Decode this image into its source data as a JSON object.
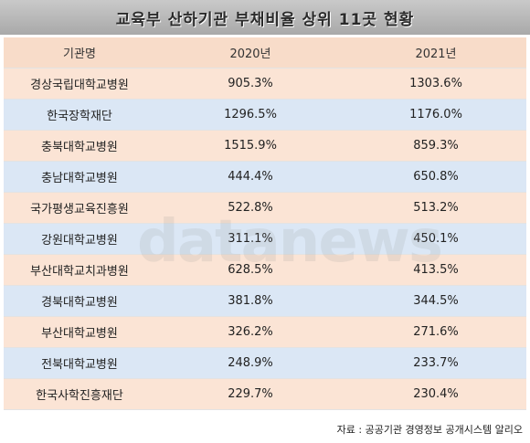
{
  "title": "교육부 산하기관 부채비율 상위 11곳 현황",
  "table": {
    "headers": [
      "기관명",
      "2020년",
      "2021년"
    ],
    "rows": [
      [
        "경상국립대학교병원",
        "905.3%",
        "1303.6%"
      ],
      [
        "한국장학재단",
        "1296.5%",
        "1176.0%"
      ],
      [
        "충북대학교병원",
        "1515.9%",
        "859.3%"
      ],
      [
        "충남대학교병원",
        "444.4%",
        "650.8%"
      ],
      [
        "국가평생교육진흥원",
        "522.8%",
        "513.2%"
      ],
      [
        "강원대학교병원",
        "311.1%",
        "450.1%"
      ],
      [
        "부산대학교치과병원",
        "628.5%",
        "413.5%"
      ],
      [
        "경북대학교병원",
        "381.8%",
        "344.5%"
      ],
      [
        "부산대학교병원",
        "326.2%",
        "271.6%"
      ],
      [
        "전북대학교병원",
        "248.9%",
        "233.7%"
      ],
      [
        "한국사학진흥재단",
        "229.7%",
        "230.4%"
      ]
    ]
  },
  "watermark": "datanews",
  "source": "자료 : 공공기관 경영정보 공개시스템 알리오",
  "colors": {
    "title_bg": "#b5b5b5",
    "header_bg": "#f8dcc9",
    "row_orange": "#fbe4d5",
    "row_blue": "#dbe7f5"
  }
}
